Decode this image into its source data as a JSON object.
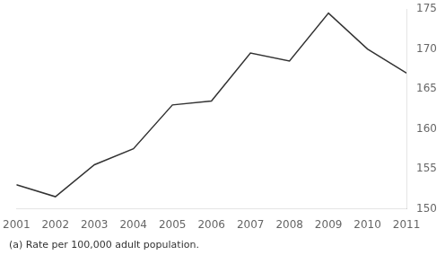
{
  "chart_data": {
    "type": "line",
    "x": [
      2001,
      2002,
      2003,
      2004,
      2005,
      2006,
      2007,
      2008,
      2009,
      2010,
      2011
    ],
    "values": [
      153.0,
      151.5,
      155.5,
      157.5,
      163.0,
      163.5,
      169.5,
      168.5,
      174.5,
      170.0,
      167.0
    ],
    "color": "#333333",
    "xlim": [
      2001,
      2011
    ],
    "xticks": [
      2001,
      2002,
      2003,
      2004,
      2005,
      2006,
      2007,
      2008,
      2009,
      2010,
      2011
    ],
    "ylim": [
      150,
      175
    ],
    "yticks": [
      150,
      155,
      160,
      165,
      170,
      175
    ],
    "grid": false,
    "footnote": "(a) Rate per 100,000 adult population."
  }
}
